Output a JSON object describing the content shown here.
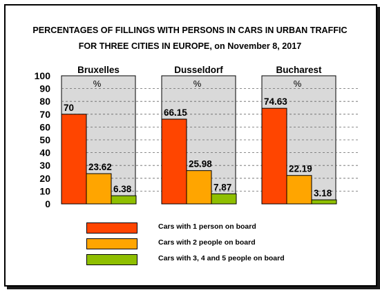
{
  "title_line1": "PERCENTAGES OF FILLINGS WITH PERSONS IN CARS IN URBAN TRAFFIC",
  "title_line2": "FOR THREE CITIES IN EUROPE, on November 8, 2017",
  "unit_label": "%",
  "colors": {
    "series1": "#ff4500",
    "series2": "#ffa500",
    "series3": "#8fbf00",
    "panel_bg": "#d9d9d9",
    "gridline": "#666666"
  },
  "chart_data": {
    "type": "bar",
    "ylim": [
      0,
      100
    ],
    "yticks": [
      "0",
      "10",
      "20",
      "30",
      "40",
      "50",
      "60",
      "70",
      "80",
      "90",
      "100"
    ],
    "grid": true,
    "legend_position": "bottom",
    "categories": [
      "Bruxelles",
      "Dusseldorf",
      "Bucharest"
    ],
    "series": [
      {
        "name": "Cars with 1 person on board",
        "values": [
          70,
          66.15,
          74.63
        ],
        "labels": [
          "70",
          "66.15",
          "74.63"
        ]
      },
      {
        "name": "Cars with 2 people on board",
        "values": [
          23.62,
          25.98,
          22.19
        ],
        "labels": [
          "23.62",
          "25.98",
          "22.19"
        ]
      },
      {
        "name": "Cars with 3, 4 and 5 people on board",
        "values": [
          6.38,
          7.87,
          3.18
        ],
        "labels": [
          "6.38",
          "7.87",
          "3.18"
        ]
      }
    ]
  }
}
